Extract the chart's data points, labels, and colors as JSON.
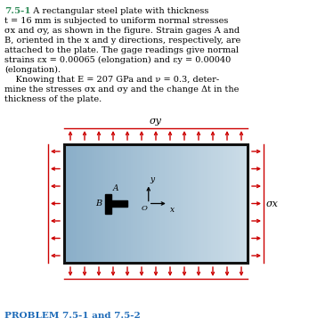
{
  "title_color": "#2E8B57",
  "problem_label_color": "#1E6BB8",
  "arrow_color": "#CC0000",
  "plate_border_color": "#111111",
  "background_color": "#ffffff",
  "plate_grad_left": "#8aaec8",
  "plate_grad_right": "#ccdde8",
  "sigma_y_label": "σy",
  "sigma_x_label": "σx",
  "problem_label": "PROBLEM 7.5-1 and 7.5-2",
  "title_num": "7.5-1",
  "line1": "  A rectangular steel plate with thickness",
  "line2": "t = 16 mm is subjected to uniform normal stresses",
  "line3": "σx and σy, as shown in the figure. Strain gages A and",
  "line4": "B, oriented in the x and y directions, respectively, are",
  "line5": "attached to the plate. The gage readings give normal",
  "line6": "strains εx = 0.00065 (elongation) and εy = 0.00040",
  "line7": "(elongation).",
  "line8": "    Knowing that E = 207 GPa and ν = 0.3, deter-",
  "line9": "mine the stresses σx and σy and the change Δt in the",
  "line10": "thickness of the plate.",
  "fig_width": 3.47,
  "fig_height": 3.66,
  "dpi": 100
}
